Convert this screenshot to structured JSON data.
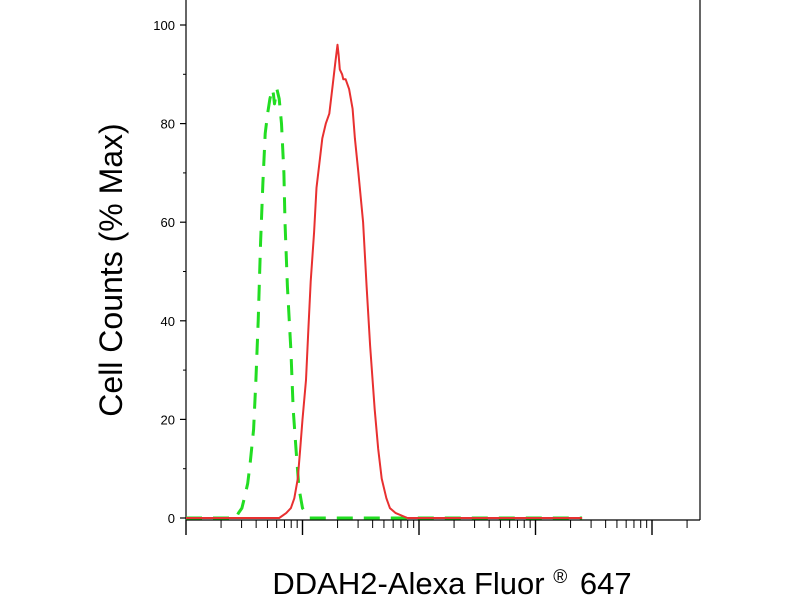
{
  "chart_data": {
    "type": "line",
    "title": "",
    "xlabel_main": "DDAH2-Alexa Fluor",
    "xlabel_sup": "®",
    "xlabel_end": "647",
    "ylabel": "Cell Counts (% Max)",
    "x_scale": "log",
    "x_tick_labels": [],
    "ylim": [
      0,
      100
    ],
    "y_ticks": [
      0,
      20,
      40,
      60,
      80,
      100
    ],
    "y_tick_labels": [
      "0",
      "20",
      "40",
      "60",
      "80",
      "100"
    ],
    "grid": false,
    "legend": "none",
    "series": [
      {
        "color": "#22dd22",
        "style": "dashed",
        "x": [
          0.0,
          0.15,
          0.3,
          0.43,
          0.45,
          0.48,
          0.5,
          0.53,
          0.55,
          0.58,
          0.6,
          0.62,
          0.64,
          0.66,
          0.68,
          0.7,
          0.72,
          0.74,
          0.75,
          0.76,
          0.78,
          0.8,
          0.82,
          0.84,
          0.85,
          0.87,
          0.9,
          0.92,
          0.95,
          0.97,
          1.0,
          1.03,
          1.06,
          1.08,
          1.12,
          1.2,
          1.5,
          2.5,
          3.4
        ],
        "y": [
          0,
          0,
          0,
          0,
          1,
          2,
          4,
          7,
          11,
          18,
          28,
          40,
          56,
          68,
          78,
          82,
          85,
          87,
          86,
          84,
          87,
          85,
          80,
          70,
          60,
          47,
          34,
          22,
          12,
          6,
          2,
          1,
          0,
          0,
          0,
          0,
          0,
          0,
          0
        ]
      },
      {
        "color": "#e83030",
        "style": "solid",
        "x": [
          0.0,
          0.5,
          0.8,
          0.86,
          0.9,
          0.93,
          0.96,
          0.98,
          1.0,
          1.03,
          1.05,
          1.07,
          1.1,
          1.12,
          1.15,
          1.17,
          1.2,
          1.23,
          1.26,
          1.28,
          1.3,
          1.31,
          1.32,
          1.34,
          1.35,
          1.37,
          1.4,
          1.43,
          1.45,
          1.48,
          1.52,
          1.55,
          1.58,
          1.62,
          1.65,
          1.68,
          1.72,
          1.75,
          1.8,
          1.9,
          2.1,
          2.5,
          3.4
        ],
        "y": [
          0,
          0,
          0,
          1,
          2,
          4,
          8,
          14,
          20,
          28,
          38,
          48,
          58,
          67,
          73,
          77,
          80,
          82,
          88,
          92,
          96,
          94,
          91,
          90,
          89,
          89,
          87,
          83,
          77,
          70,
          60,
          47,
          35,
          22,
          14,
          8,
          4,
          2,
          1,
          0,
          0,
          0,
          0
        ]
      }
    ]
  }
}
